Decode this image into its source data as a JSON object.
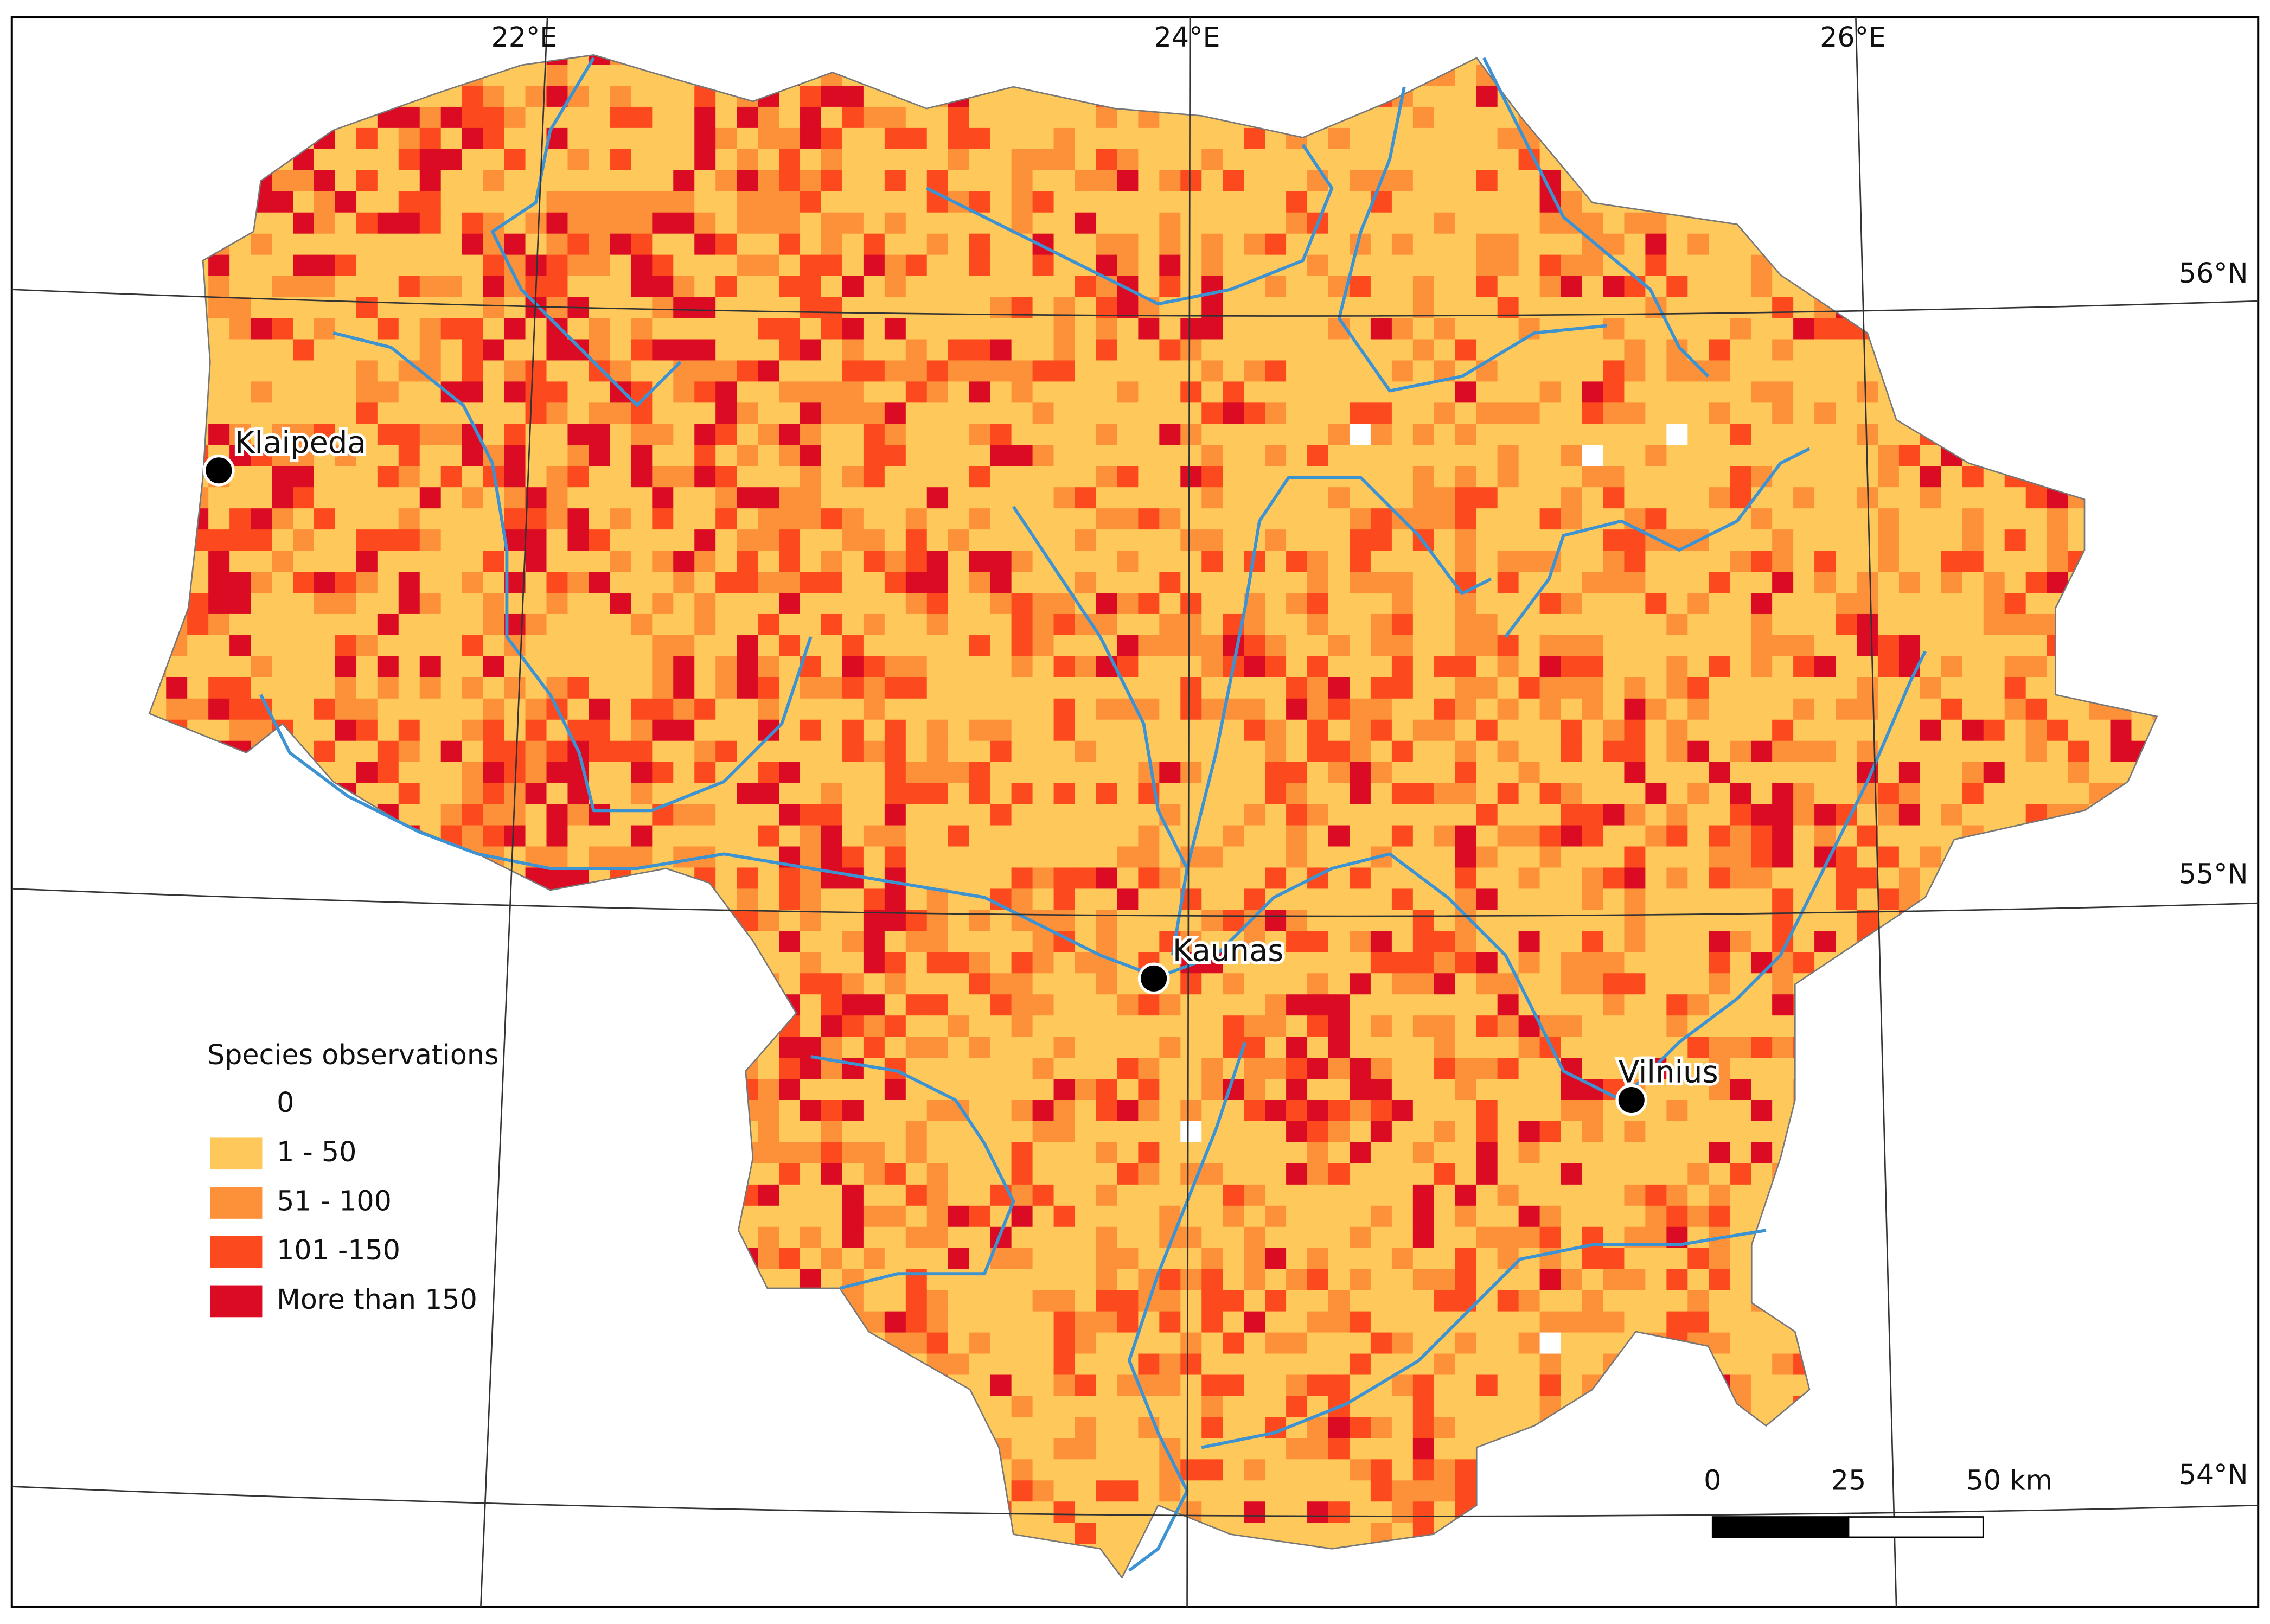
{
  "map": {
    "graticule": {
      "longitudes": [
        "22°E",
        "24°E",
        "26°E"
      ],
      "latitudes": [
        "56°N",
        "55°N",
        "54°N"
      ]
    },
    "cities": [
      "Klaipeda",
      "Kaunas",
      "Vilnius"
    ],
    "legend": {
      "title": "Species observations",
      "items": [
        {
          "label": "0",
          "color": "#ffffff"
        },
        {
          "label": "1 - 50",
          "color": "#fec95a"
        },
        {
          "label": "51 - 100",
          "color": "#fd913a"
        },
        {
          "label": "101 -150",
          "color": "#fc4a1e"
        },
        {
          "label": "More than 150",
          "color": "#dc0b24"
        }
      ]
    },
    "scale_bar": {
      "labels": [
        "0",
        "25",
        "50 km"
      ]
    }
  }
}
